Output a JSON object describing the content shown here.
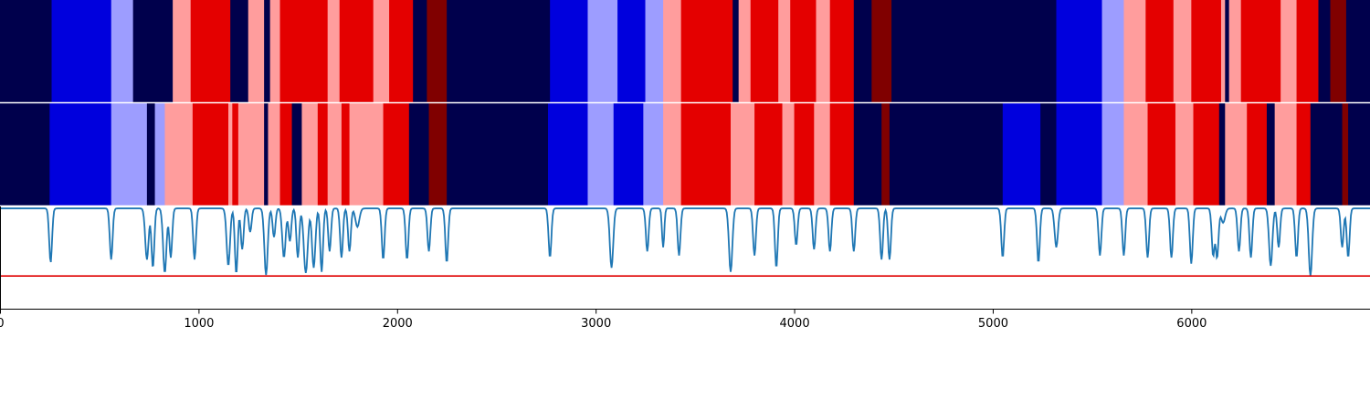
{
  "chart_data": {
    "type": "heatmap",
    "title": "",
    "xlabel": "",
    "ylabel": "",
    "xlim": [
      0,
      6900
    ],
    "x_ticks": [
      0,
      1000,
      2000,
      3000,
      4000,
      5000,
      6000
    ],
    "x_tick_labels": [
      "0",
      "1000",
      "2000",
      "3000",
      "4000",
      "5000",
      "6000"
    ],
    "grid": false,
    "legend": "none",
    "class_colors": {
      "0": "#00004c",
      "1": "#0000dd",
      "2": "#9d9dff",
      "3": "#ff9d9d",
      "4": "#e40000",
      "5": "#800000"
    },
    "tracks": [
      {
        "segments": [
          [
            0,
            260,
            0
          ],
          [
            260,
            560,
            1
          ],
          [
            560,
            670,
            2
          ],
          [
            670,
            870,
            0
          ],
          [
            870,
            960,
            3
          ],
          [
            960,
            1160,
            4
          ],
          [
            1160,
            1250,
            0
          ],
          [
            1250,
            1330,
            3
          ],
          [
            1330,
            1360,
            0
          ],
          [
            1360,
            1410,
            3
          ],
          [
            1410,
            1650,
            4
          ],
          [
            1650,
            1710,
            3
          ],
          [
            1710,
            1880,
            4
          ],
          [
            1880,
            1960,
            3
          ],
          [
            1960,
            2080,
            4
          ],
          [
            2080,
            2150,
            0
          ],
          [
            2150,
            2250,
            5
          ],
          [
            2250,
            2770,
            0
          ],
          [
            2770,
            2960,
            1
          ],
          [
            2960,
            3110,
            2
          ],
          [
            3110,
            3250,
            1
          ],
          [
            3250,
            3340,
            2
          ],
          [
            3340,
            3430,
            3
          ],
          [
            3430,
            3690,
            4
          ],
          [
            3690,
            3720,
            0
          ],
          [
            3720,
            3780,
            3
          ],
          [
            3780,
            3920,
            4
          ],
          [
            3920,
            3980,
            3
          ],
          [
            3980,
            4110,
            4
          ],
          [
            4110,
            4180,
            3
          ],
          [
            4180,
            4300,
            4
          ],
          [
            4300,
            4390,
            0
          ],
          [
            4390,
            4490,
            5
          ],
          [
            4490,
            5320,
            0
          ],
          [
            5320,
            5550,
            1
          ],
          [
            5550,
            5660,
            2
          ],
          [
            5660,
            5770,
            3
          ],
          [
            5770,
            5910,
            4
          ],
          [
            5910,
            6000,
            3
          ],
          [
            6000,
            6150,
            4
          ],
          [
            6150,
            6170,
            3
          ],
          [
            6170,
            6190,
            0
          ],
          [
            6190,
            6250,
            3
          ],
          [
            6250,
            6450,
            4
          ],
          [
            6450,
            6530,
            3
          ],
          [
            6530,
            6640,
            4
          ],
          [
            6640,
            6700,
            0
          ],
          [
            6700,
            6780,
            5
          ],
          [
            6780,
            6900,
            0
          ]
        ]
      },
      {
        "segments": [
          [
            0,
            250,
            0
          ],
          [
            250,
            560,
            1
          ],
          [
            560,
            740,
            2
          ],
          [
            740,
            780,
            0
          ],
          [
            780,
            830,
            2
          ],
          [
            830,
            970,
            3
          ],
          [
            970,
            1150,
            4
          ],
          [
            1150,
            1170,
            3
          ],
          [
            1170,
            1200,
            4
          ],
          [
            1200,
            1330,
            3
          ],
          [
            1330,
            1350,
            0
          ],
          [
            1350,
            1410,
            3
          ],
          [
            1410,
            1470,
            4
          ],
          [
            1470,
            1520,
            0
          ],
          [
            1520,
            1600,
            3
          ],
          [
            1600,
            1650,
            4
          ],
          [
            1650,
            1720,
            3
          ],
          [
            1720,
            1760,
            4
          ],
          [
            1760,
            1930,
            3
          ],
          [
            1930,
            2060,
            4
          ],
          [
            2060,
            2160,
            0
          ],
          [
            2160,
            2250,
            5
          ],
          [
            2250,
            2760,
            0
          ],
          [
            2760,
            2960,
            1
          ],
          [
            2960,
            3090,
            2
          ],
          [
            3090,
            3240,
            1
          ],
          [
            3240,
            3340,
            2
          ],
          [
            3340,
            3430,
            3
          ],
          [
            3430,
            3680,
            4
          ],
          [
            3680,
            3800,
            3
          ],
          [
            3800,
            3940,
            4
          ],
          [
            3940,
            4000,
            3
          ],
          [
            4000,
            4100,
            4
          ],
          [
            4100,
            4180,
            3
          ],
          [
            4180,
            4300,
            4
          ],
          [
            4300,
            4440,
            0
          ],
          [
            4440,
            4480,
            5
          ],
          [
            4480,
            5050,
            0
          ],
          [
            5050,
            5240,
            1
          ],
          [
            5240,
            5320,
            0
          ],
          [
            5320,
            5550,
            1
          ],
          [
            5550,
            5660,
            2
          ],
          [
            5660,
            5780,
            3
          ],
          [
            5780,
            5920,
            4
          ],
          [
            5920,
            6010,
            3
          ],
          [
            6010,
            6140,
            4
          ],
          [
            6140,
            6170,
            0
          ],
          [
            6170,
            6280,
            3
          ],
          [
            6280,
            6380,
            4
          ],
          [
            6380,
            6420,
            0
          ],
          [
            6420,
            6530,
            3
          ],
          [
            6530,
            6600,
            4
          ],
          [
            6600,
            6760,
            0
          ],
          [
            6760,
            6790,
            5
          ],
          [
            6790,
            6900,
            0
          ]
        ]
      }
    ],
    "score_track": {
      "ylim": [
        0,
        1
      ],
      "threshold": 0.32,
      "threshold_color": "#e00000",
      "line_color": "#1f77b4",
      "baseline": 0.98,
      "dips": [
        [
          255,
          0.45,
          10
        ],
        [
          560,
          0.48,
          10
        ],
        [
          740,
          0.48,
          12
        ],
        [
          770,
          0.4,
          10
        ],
        [
          830,
          0.35,
          12
        ],
        [
          860,
          0.5,
          10
        ],
        [
          980,
          0.48,
          10
        ],
        [
          1150,
          0.42,
          12
        ],
        [
          1190,
          0.34,
          10
        ],
        [
          1220,
          0.58,
          10
        ],
        [
          1260,
          0.75,
          10
        ],
        [
          1340,
          0.33,
          12
        ],
        [
          1380,
          0.7,
          10
        ],
        [
          1430,
          0.5,
          12
        ],
        [
          1460,
          0.66,
          10
        ],
        [
          1500,
          0.5,
          10
        ],
        [
          1540,
          0.35,
          14
        ],
        [
          1580,
          0.4,
          12
        ],
        [
          1620,
          0.36,
          10
        ],
        [
          1660,
          0.56,
          10
        ],
        [
          1720,
          0.5,
          10
        ],
        [
          1760,
          0.56,
          10
        ],
        [
          1800,
          0.8,
          14
        ],
        [
          1930,
          0.48,
          10
        ],
        [
          2050,
          0.48,
          10
        ],
        [
          2160,
          0.56,
          10
        ],
        [
          2250,
          0.45,
          10
        ],
        [
          2770,
          0.5,
          10
        ],
        [
          3080,
          0.4,
          12
        ],
        [
          3260,
          0.56,
          10
        ],
        [
          3340,
          0.6,
          8
        ],
        [
          3420,
          0.52,
          10
        ],
        [
          3680,
          0.36,
          12
        ],
        [
          3800,
          0.52,
          10
        ],
        [
          3910,
          0.4,
          10
        ],
        [
          4010,
          0.62,
          10
        ],
        [
          4100,
          0.58,
          10
        ],
        [
          4180,
          0.56,
          10
        ],
        [
          4300,
          0.56,
          10
        ],
        [
          4440,
          0.48,
          10
        ],
        [
          4480,
          0.48,
          10
        ],
        [
          5050,
          0.5,
          10
        ],
        [
          5230,
          0.45,
          10
        ],
        [
          5320,
          0.6,
          12
        ],
        [
          5540,
          0.52,
          10
        ],
        [
          5660,
          0.52,
          10
        ],
        [
          5780,
          0.5,
          10
        ],
        [
          5900,
          0.5,
          10
        ],
        [
          6000,
          0.44,
          10
        ],
        [
          6110,
          0.52,
          10
        ],
        [
          6130,
          0.5,
          10
        ],
        [
          6160,
          0.84,
          14
        ],
        [
          6240,
          0.56,
          10
        ],
        [
          6300,
          0.5,
          10
        ],
        [
          6400,
          0.42,
          12
        ],
        [
          6440,
          0.6,
          10
        ],
        [
          6530,
          0.5,
          10
        ],
        [
          6600,
          0.32,
          12
        ],
        [
          6760,
          0.6,
          10
        ],
        [
          6790,
          0.5,
          10
        ]
      ]
    }
  }
}
